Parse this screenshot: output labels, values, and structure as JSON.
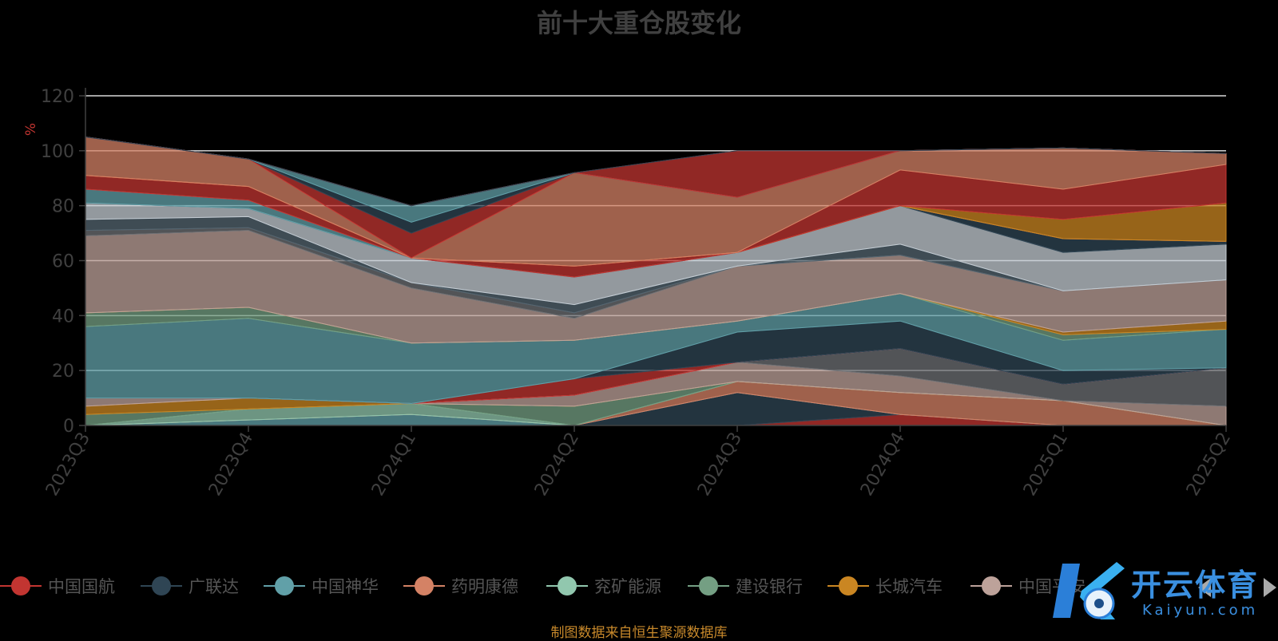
{
  "chart_data": {
    "type": "area",
    "stacked": true,
    "title": "前十大重仓股变化",
    "ylabel": "%",
    "ylim": [
      0,
      120
    ],
    "yticks": [
      0,
      20,
      40,
      60,
      80,
      100,
      120
    ],
    "grid": true,
    "legend_position": "bottom",
    "categories": [
      "2023Q3",
      "2023Q4",
      "2024Q1",
      "2024Q2",
      "2024Q3",
      "2024Q4",
      "2025Q1",
      "2025Q2"
    ],
    "series": [
      {
        "name": "中国国航",
        "color": "#c23531",
        "values": [
          0,
          0,
          0,
          0,
          0,
          4,
          0,
          0
        ]
      },
      {
        "name": "广联达",
        "color": "#2f4554",
        "values": [
          0,
          0,
          0,
          0,
          12,
          0,
          0,
          0
        ]
      },
      {
        "name": "中国神华",
        "color": "#61a0a8",
        "values": [
          0,
          2,
          4,
          0,
          0,
          0,
          0,
          0
        ]
      },
      {
        "name": "药明康德",
        "color": "#d48265",
        "values": [
          0,
          0,
          0,
          0,
          4,
          8,
          9,
          0
        ]
      },
      {
        "name": "兖矿能源",
        "color": "#91c7ae",
        "values": [
          0,
          4,
          4,
          0,
          0,
          0,
          0,
          0
        ]
      },
      {
        "name": "建设银行",
        "color": "#749f83",
        "values": [
          4,
          0,
          0,
          7,
          0,
          0,
          0,
          0
        ]
      },
      {
        "name": "长城汽车",
        "color": "#ca8622",
        "values": [
          3,
          4,
          0,
          0,
          0,
          0,
          0,
          0
        ]
      },
      {
        "name": "中国平安",
        "color": "#bda29a",
        "values": [
          3,
          0,
          0,
          4,
          7,
          6,
          0,
          7
        ]
      },
      {
        "name": "",
        "color": "#6e7074",
        "values": [
          0,
          0,
          0,
          0,
          0,
          10,
          6,
          14
        ]
      },
      {
        "name": "",
        "color": "#546570",
        "values": [
          0,
          0,
          0,
          0,
          0,
          0,
          0,
          0
        ]
      },
      {
        "name": "",
        "color": "#c4ccd3",
        "values": [
          0,
          0,
          0,
          0,
          0,
          0,
          0,
          0
        ]
      },
      {
        "name": "",
        "color": "#c23531",
        "values": [
          0,
          0,
          0,
          6,
          0,
          0,
          0,
          0
        ]
      },
      {
        "name": "",
        "color": "#2f4554",
        "values": [
          0,
          0,
          0,
          0,
          11,
          10,
          5,
          0
        ]
      },
      {
        "name": "",
        "color": "#61a0a8",
        "values": [
          26,
          29,
          22,
          14,
          4,
          10,
          11,
          14
        ]
      },
      {
        "name": "",
        "color": "#749f83",
        "values": [
          5,
          4,
          0,
          0,
          0,
          0,
          2,
          0
        ]
      },
      {
        "name": "",
        "color": "#ca8622",
        "values": [
          0,
          0,
          0,
          0,
          0,
          0,
          1,
          3
        ]
      },
      {
        "name": "",
        "color": "#bda29a",
        "values": [
          28,
          28,
          20,
          8,
          20,
          14,
          15,
          15
        ]
      },
      {
        "name": "",
        "color": "#6e7074",
        "values": [
          2,
          1,
          2,
          2,
          0,
          0,
          0,
          0
        ]
      },
      {
        "name": "",
        "color": "#546570",
        "values": [
          4,
          4,
          0,
          3,
          0,
          4,
          0,
          0
        ]
      },
      {
        "name": "",
        "color": "#c4ccd3",
        "values": [
          6,
          3,
          9,
          10,
          5,
          14,
          14,
          13
        ]
      },
      {
        "name": "",
        "color": "#2f4554",
        "values": [
          0,
          0,
          0,
          0,
          0,
          0,
          5,
          1
        ]
      },
      {
        "name": "",
        "color": "#61a0a8",
        "values": [
          5,
          3,
          0,
          0,
          0,
          0,
          0,
          0
        ]
      },
      {
        "name": "",
        "color": "#c23531",
        "values": [
          5,
          5,
          0,
          4,
          0,
          0,
          0,
          0
        ]
      },
      {
        "name": "",
        "color": "#ca8622",
        "values": [
          0,
          0,
          0,
          0,
          0,
          0,
          7,
          14
        ]
      },
      {
        "name": "",
        "color": "#c23531",
        "values": [
          0,
          0,
          0,
          0,
          0,
          13,
          11,
          14
        ]
      },
      {
        "name": "",
        "color": "#d48265",
        "values": [
          14,
          10,
          0,
          34,
          20,
          7,
          15,
          4
        ]
      },
      {
        "name": "",
        "color": "#c23531",
        "values": [
          0,
          0,
          9,
          0,
          0,
          0,
          0,
          0
        ]
      },
      {
        "name": "",
        "color": "#2f4554",
        "values": [
          0,
          0,
          4,
          0,
          0,
          0,
          0,
          0
        ]
      },
      {
        "name": "",
        "color": "#61a0a8",
        "values": [
          0,
          0,
          6,
          0,
          0,
          0,
          0,
          0
        ]
      },
      {
        "name": "",
        "color": "#c23531",
        "values": [
          0,
          0,
          0,
          0,
          17,
          0,
          0,
          0
        ]
      },
      {
        "name": "",
        "color": "#2f4554",
        "values": [
          0,
          0,
          0,
          0,
          0,
          0,
          0,
          0
        ]
      }
    ]
  },
  "legend": {
    "items": [
      {
        "label": "中国国航",
        "color": "#c23531"
      },
      {
        "label": "广联达",
        "color": "#2f4554"
      },
      {
        "label": "中国神华",
        "color": "#61a0a8"
      },
      {
        "label": "药明康德",
        "color": "#d48265"
      },
      {
        "label": "兖矿能源",
        "color": "#91c7ae"
      },
      {
        "label": "建设银行",
        "color": "#749f83"
      },
      {
        "label": "长城汽车",
        "color": "#ca8622"
      },
      {
        "label": "中国平安",
        "color": "#bda29a"
      }
    ]
  },
  "source_note": "制图数据来自恒生聚源数据库",
  "watermark": {
    "text": "开云体育",
    "sub": "Kaiyun.com"
  }
}
